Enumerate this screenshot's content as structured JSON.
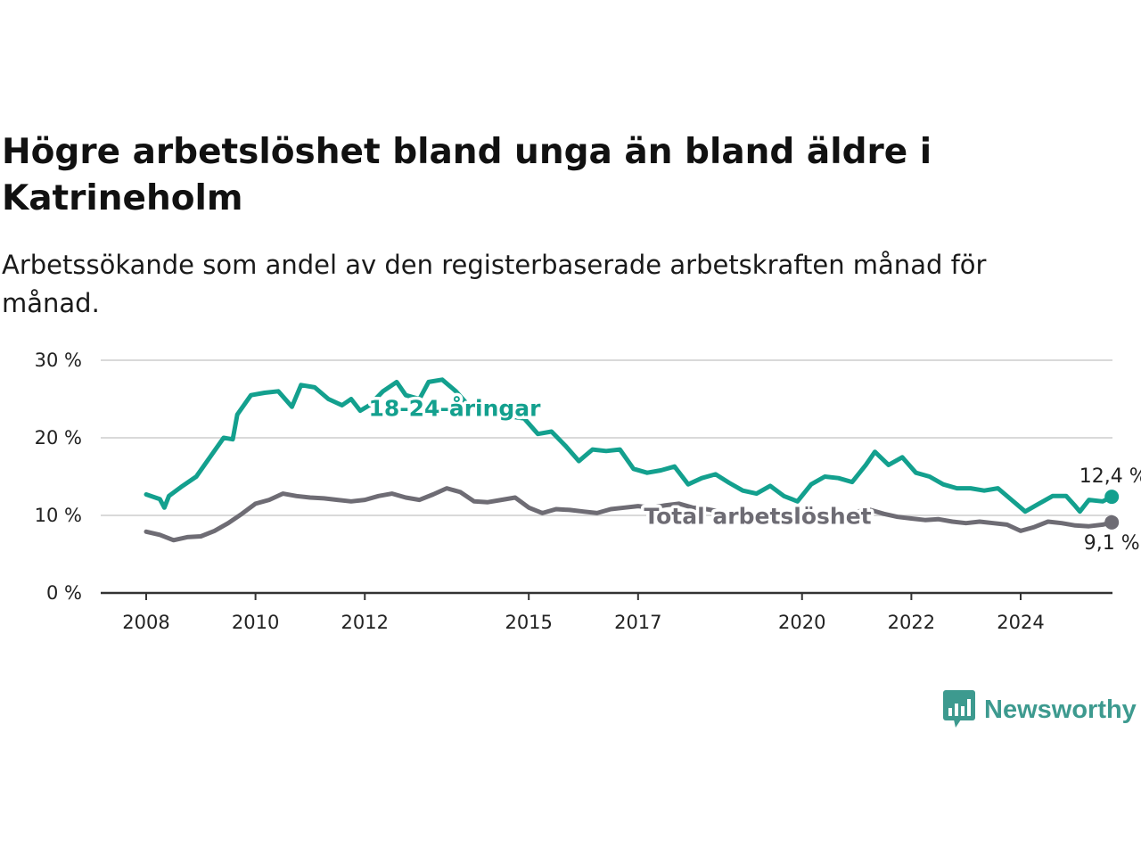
{
  "title": "Högre arbetslöshet bland unga än bland äldre i Katrineholm",
  "subtitle": "Arbetssökande som andel av den registerbaserade arbetskraften månad för månad.",
  "brand": {
    "name": "Newsworthy",
    "icon": "newsworthy-logo-icon"
  },
  "colors": {
    "youth": "#13a08e",
    "total": "#6e6c74",
    "grid": "#d9d9d9",
    "axis": "#333333"
  },
  "chart_data": {
    "type": "line",
    "xlabel": "",
    "ylabel": "",
    "ylim": [
      0,
      30
    ],
    "x_ticks": [
      "2008",
      "2010",
      "2012",
      "2015",
      "2017",
      "2020",
      "2022",
      "2024"
    ],
    "y_ticks": [
      "0 %",
      "10 %",
      "20 %",
      "30 %"
    ],
    "grid": true,
    "series": [
      {
        "name": "18-24-åringar",
        "end_label": "12,4 %",
        "points": [
          [
            "2008-01",
            12.7
          ],
          [
            "2008-04",
            12.1
          ],
          [
            "2008-05",
            11.0
          ],
          [
            "2008-06",
            12.5
          ],
          [
            "2008-09",
            13.8
          ],
          [
            "2008-12",
            15.0
          ],
          [
            "2009-03",
            17.5
          ],
          [
            "2009-06",
            20.0
          ],
          [
            "2009-08",
            19.8
          ],
          [
            "2009-09",
            23.0
          ],
          [
            "2009-12",
            25.5
          ],
          [
            "2010-03",
            25.8
          ],
          [
            "2010-06",
            26.0
          ],
          [
            "2010-09",
            24.0
          ],
          [
            "2010-11",
            26.8
          ],
          [
            "2011-02",
            26.5
          ],
          [
            "2011-05",
            25.0
          ],
          [
            "2011-08",
            24.2
          ],
          [
            "2011-10",
            25.0
          ],
          [
            "2011-12",
            23.5
          ],
          [
            "2012-02",
            24.2
          ],
          [
            "2012-05",
            26.0
          ],
          [
            "2012-08",
            27.2
          ],
          [
            "2012-10",
            25.5
          ],
          [
            "2013-01",
            25.0
          ],
          [
            "2013-03",
            27.2
          ],
          [
            "2013-06",
            27.5
          ],
          [
            "2013-09",
            26.0
          ],
          [
            "2013-12",
            24.0
          ],
          [
            "2014-06",
            23.0
          ],
          [
            "2014-12",
            22.5
          ],
          [
            "2015-03",
            20.5
          ],
          [
            "2015-06",
            20.8
          ],
          [
            "2015-09",
            19.0
          ],
          [
            "2015-12",
            17.0
          ],
          [
            "2016-03",
            18.5
          ],
          [
            "2016-06",
            18.3
          ],
          [
            "2016-09",
            18.5
          ],
          [
            "2016-12",
            16.0
          ],
          [
            "2017-03",
            15.5
          ],
          [
            "2017-06",
            15.8
          ],
          [
            "2017-09",
            16.3
          ],
          [
            "2017-12",
            14.0
          ],
          [
            "2018-03",
            14.8
          ],
          [
            "2018-06",
            15.3
          ],
          [
            "2018-09",
            14.2
          ],
          [
            "2018-12",
            13.2
          ],
          [
            "2019-03",
            12.8
          ],
          [
            "2019-06",
            13.8
          ],
          [
            "2019-09",
            12.5
          ],
          [
            "2019-12",
            11.8
          ],
          [
            "2020-03",
            14.0
          ],
          [
            "2020-06",
            15.0
          ],
          [
            "2020-09",
            14.8
          ],
          [
            "2020-12",
            14.3
          ],
          [
            "2021-03",
            16.5
          ],
          [
            "2021-05",
            18.2
          ],
          [
            "2021-08",
            16.5
          ],
          [
            "2021-11",
            17.5
          ],
          [
            "2022-02",
            15.5
          ],
          [
            "2022-05",
            15.0
          ],
          [
            "2022-08",
            14.0
          ],
          [
            "2022-11",
            13.5
          ],
          [
            "2023-02",
            13.5
          ],
          [
            "2023-05",
            13.2
          ],
          [
            "2023-08",
            13.5
          ],
          [
            "2023-11",
            12.0
          ],
          [
            "2024-02",
            10.5
          ],
          [
            "2024-05",
            11.5
          ],
          [
            "2024-08",
            12.5
          ],
          [
            "2024-11",
            12.5
          ],
          [
            "2025-01",
            11.2
          ],
          [
            "2025-02",
            10.5
          ],
          [
            "2025-04",
            12.0
          ],
          [
            "2025-07",
            11.8
          ],
          [
            "2025-09",
            12.4
          ]
        ]
      },
      {
        "name": "Total arbetslöshet",
        "end_label": "9,1 %",
        "points": [
          [
            "2008-01",
            7.9
          ],
          [
            "2008-04",
            7.5
          ],
          [
            "2008-07",
            6.8
          ],
          [
            "2008-10",
            7.2
          ],
          [
            "2009-01",
            7.3
          ],
          [
            "2009-04",
            8.0
          ],
          [
            "2009-07",
            9.0
          ],
          [
            "2009-10",
            10.2
          ],
          [
            "2010-01",
            11.5
          ],
          [
            "2010-04",
            12.0
          ],
          [
            "2010-07",
            12.8
          ],
          [
            "2010-10",
            12.5
          ],
          [
            "2011-01",
            12.3
          ],
          [
            "2011-04",
            12.2
          ],
          [
            "2011-07",
            12.0
          ],
          [
            "2011-10",
            11.8
          ],
          [
            "2012-01",
            12.0
          ],
          [
            "2012-04",
            12.5
          ],
          [
            "2012-07",
            12.8
          ],
          [
            "2012-10",
            12.3
          ],
          [
            "2013-01",
            12.0
          ],
          [
            "2013-04",
            12.7
          ],
          [
            "2013-07",
            13.5
          ],
          [
            "2013-10",
            13.0
          ],
          [
            "2014-01",
            11.8
          ],
          [
            "2014-04",
            11.7
          ],
          [
            "2014-07",
            12.0
          ],
          [
            "2014-10",
            12.3
          ],
          [
            "2015-01",
            11.0
          ],
          [
            "2015-04",
            10.3
          ],
          [
            "2015-07",
            10.8
          ],
          [
            "2015-10",
            10.7
          ],
          [
            "2016-01",
            10.5
          ],
          [
            "2016-04",
            10.3
          ],
          [
            "2016-07",
            10.8
          ],
          [
            "2016-10",
            11.0
          ],
          [
            "2017-01",
            11.2
          ],
          [
            "2017-04",
            11.0
          ],
          [
            "2017-07",
            11.3
          ],
          [
            "2017-10",
            11.5
          ],
          [
            "2018-01",
            11.0
          ],
          [
            "2018-04",
            10.8
          ],
          [
            "2018-07",
            10.5
          ],
          [
            "2018-10",
            10.2
          ],
          [
            "2019-01",
            10.0
          ],
          [
            "2019-04",
            10.0
          ],
          [
            "2019-07",
            9.8
          ],
          [
            "2019-10",
            9.8
          ],
          [
            "2020-01",
            9.6
          ],
          [
            "2020-04",
            10.0
          ],
          [
            "2020-07",
            10.2
          ],
          [
            "2020-10",
            10.0
          ],
          [
            "2021-01",
            10.5
          ],
          [
            "2021-04",
            10.7
          ],
          [
            "2021-07",
            10.2
          ],
          [
            "2021-10",
            9.8
          ],
          [
            "2022-01",
            9.6
          ],
          [
            "2022-04",
            9.4
          ],
          [
            "2022-07",
            9.5
          ],
          [
            "2022-10",
            9.2
          ],
          [
            "2023-01",
            9.0
          ],
          [
            "2023-04",
            9.2
          ],
          [
            "2023-07",
            9.0
          ],
          [
            "2023-10",
            8.8
          ],
          [
            "2024-01",
            8.0
          ],
          [
            "2024-04",
            8.5
          ],
          [
            "2024-07",
            9.2
          ],
          [
            "2024-10",
            9.0
          ],
          [
            "2025-01",
            8.7
          ],
          [
            "2025-04",
            8.6
          ],
          [
            "2025-07",
            8.8
          ],
          [
            "2025-09",
            9.1
          ]
        ]
      }
    ]
  }
}
